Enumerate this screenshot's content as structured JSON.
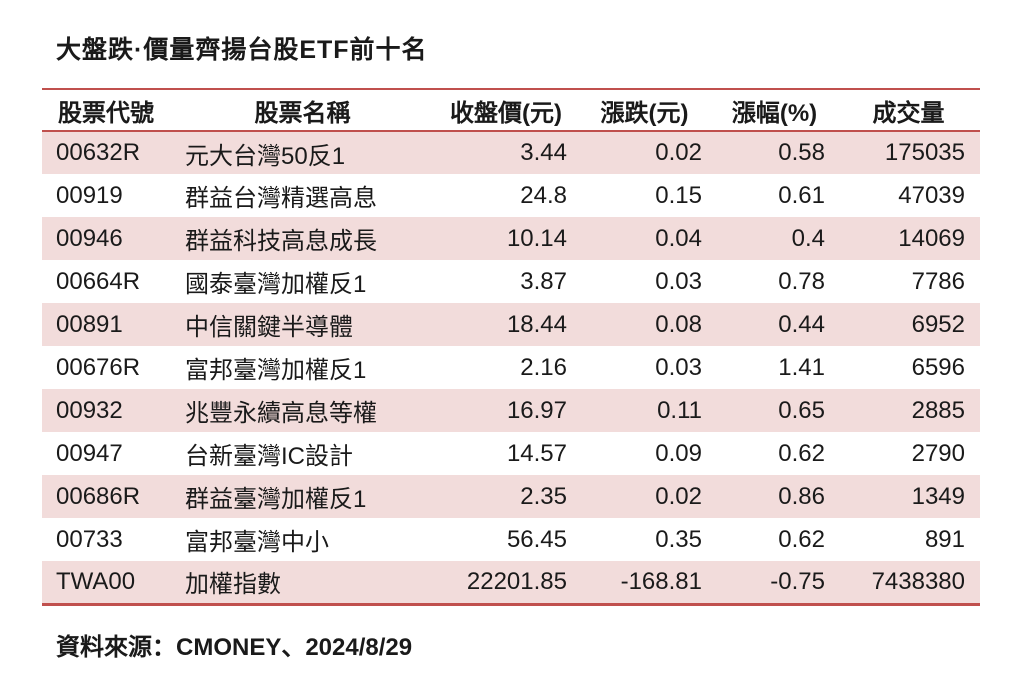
{
  "title": "大盤跌·價量齊揚台股ETF前十名",
  "chart_data": {
    "type": "table",
    "title": "大盤跌·價量齊揚台股ETF前十名",
    "columns": [
      "股票代號",
      "股票名稱",
      "收盤價(元)",
      "漲跌(元)",
      "漲幅(%)",
      "成交量"
    ],
    "rows": [
      [
        "00632R",
        "元大台灣50反1",
        "3.44",
        "0.02",
        "0.58",
        "175035"
      ],
      [
        "00919",
        "群益台灣精選高息",
        "24.8",
        "0.15",
        "0.61",
        "47039"
      ],
      [
        "00946",
        "群益科技高息成長",
        "10.14",
        "0.04",
        "0.4",
        "14069"
      ],
      [
        "00664R",
        "國泰臺灣加權反1",
        "3.87",
        "0.03",
        "0.78",
        "7786"
      ],
      [
        "00891",
        "中信關鍵半導體",
        "18.44",
        "0.08",
        "0.44",
        "6952"
      ],
      [
        "00676R",
        "富邦臺灣加權反1",
        "2.16",
        "0.03",
        "1.41",
        "6596"
      ],
      [
        "00932",
        "兆豐永續高息等權",
        "16.97",
        "0.11",
        "0.65",
        "2885"
      ],
      [
        "00947",
        "台新臺灣IC設計",
        "14.57",
        "0.09",
        "0.62",
        "2790"
      ],
      [
        "00686R",
        "群益臺灣加權反1",
        "2.35",
        "0.02",
        "0.86",
        "1349"
      ],
      [
        "00733",
        "富邦臺灣中小",
        "56.45",
        "0.35",
        "0.62",
        "891"
      ],
      [
        "TWA00",
        "加權指數",
        "22201.85",
        "-168.81",
        "-0.75",
        "7438380"
      ]
    ],
    "layout": {
      "stripe_rows": "odd rows shaded",
      "grid": "horizontal rules only: top, below header, bottom"
    }
  },
  "footer": {
    "source": "資料來源：CMONEY、2024/8/29"
  },
  "colors": {
    "accent": "#C0504D",
    "row_stripe": "#F2DCDB",
    "text": "#1A1A1A",
    "background": "#FFFFFF"
  }
}
